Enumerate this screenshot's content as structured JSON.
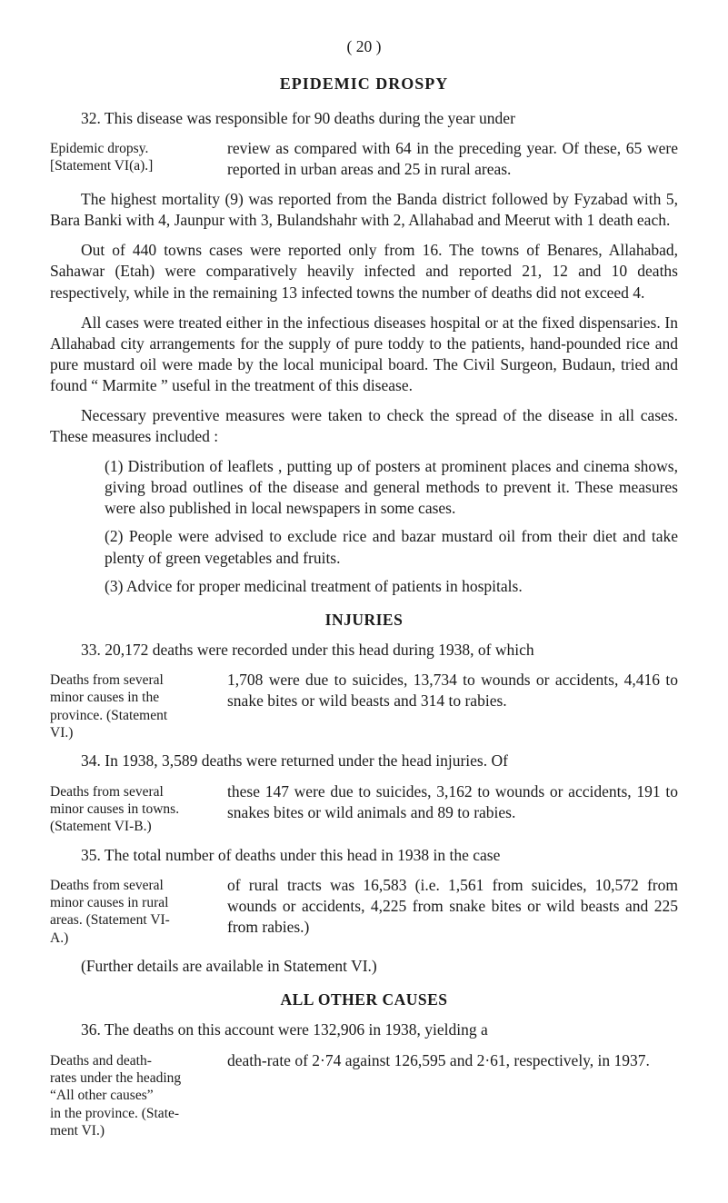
{
  "page_number": "(   20   )",
  "headings": {
    "epidemic": "EPIDEMIC DROSPY",
    "injuries": "INJURIES",
    "other": "ALL OTHER CAUSES"
  },
  "sidenotes": {
    "s1a": "Epidemic      dropsy.",
    "s1b": "[Statement VI(a).]",
    "s2a": "Deaths from several",
    "s2b": "minor causes in the",
    "s2c": "province.   (Statement",
    "s2d": "VI.)",
    "s3a": "Deaths from several",
    "s3b": "minor causes in towns.",
    "s3c": "(Statement VI-B.)",
    "s4a": "Deaths from several",
    "s4b": "minor causes in rural",
    "s4c": "areas.  (Statement VI-",
    "s4d": "A.)",
    "s5a": "Deaths and death-",
    "s5b": "rates under the heading",
    "s5c": "“All   other   causes”",
    "s5d": "in the province. (State-",
    "s5e": "ment VI.)"
  },
  "paras": {
    "p32a": "32.   This disease was responsible for 90 deaths during the year under",
    "p32b": "review as compared with 64 in the preceding year. Of these, 65 were reported in urban areas and 25 in rural areas.",
    "p_high": "The highest mortality (9) was reported from the Banda district followed by Fyzabad with 5, Bara Banki with 4, Jaunpur with 3, Buland­shahr with 2, Allahabad and Meerut with 1 death each.",
    "p_out": "Out of 440 towns cases were reported only from 16. The towns of Benares, Allahabad, Sahawar (Etah) were comparatively heavily infected and reported 21, 12 and 10 deaths respectively, while in the remaining 13 infected towns the number of deaths did not exceed 4.",
    "p_all": "All cases were treated either in the infectious diseases hospital or at the fixed dispensaries. In Allahabad city arrangements for the supply of pure toddy to the patients, hand-pounded rice and pure mustard oil were made by the local municipal board. The Civil Surgeon, Budaun, tried and found “ Marmite ” useful in the treatment of this disease.",
    "p_nec": "Necessary preventive measures were taken to check the spread of the disease in all cases. These measures included :",
    "li1": "(1) Distribution of leaflets , putting up of posters at prominent places and cinema shows, giving broad outlines of the disease and general methods to prevent it. These measures were also published in local newspapers in some cases.",
    "li2": "(2) People were advised to exclude rice and bazar mustard oil from their diet and take plenty of green vegetables and fruits.",
    "li3": "(3) Advice for proper medicinal treatment of patients in hospitals.",
    "p33a": "33.   20,172 deaths were recorded under this head during 1938, of which",
    "p33b": "1,708 were due to suicides, 13,734 to wounds or accidents, 4,416 to snake bites or wild beasts and 314 to rabies.",
    "p34a": "34.   In 1938, 3,589 deaths were returned under the head injuries.   Of",
    "p34b": "these 147 were due to suicides, 3,162 to wounds or accidents, 191 to snakes bites or wild animals and 89 to rabies.",
    "p35a": "35.   The total number of deaths under this head in 1938 in the case",
    "p35b": "of rural tracts was 16,583 (i.e. 1,561 from suicides, 10,572 from wounds or accidents, 4,225 from snake bites or wild beasts and 225 from rabies.)",
    "p_further": "(Further details are available in Statement VI.)",
    "p36a": "36.   The deaths on this account were 132,906 in 1938, yielding a",
    "p36b": "death-rate of 2·74 against 126,595 and 2·61, respectively, in 1937."
  }
}
